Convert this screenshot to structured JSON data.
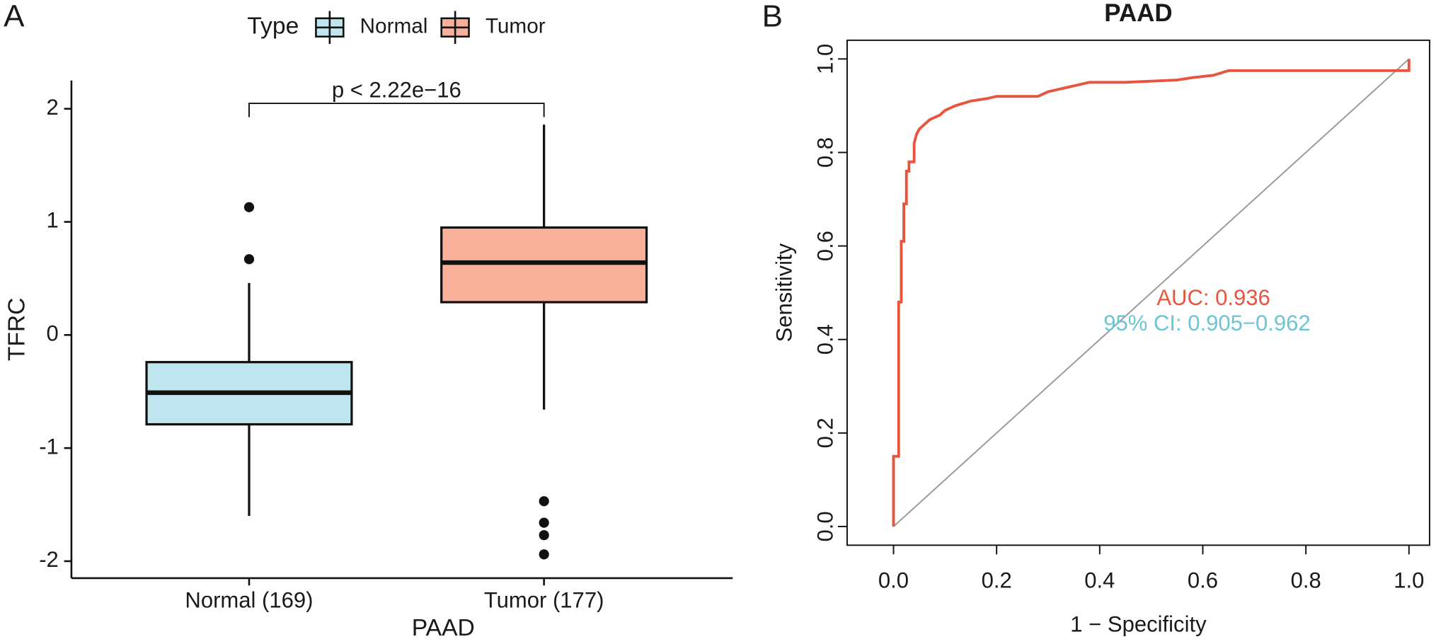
{
  "chart_data": [
    {
      "type": "box",
      "panel_label": "A",
      "legend_title": "Type",
      "x_label": "PAAD",
      "y_label": "TFRC",
      "annotation": "p < 2.22e−16",
      "categories": [
        "Normal (169)",
        "Tumor (177)"
      ],
      "series": [
        {
          "name": "Normal",
          "color": "#bfe6ef",
          "whisker_low": -1.6,
          "q1": -0.79,
          "median": -0.51,
          "q3": -0.24,
          "whisker_high": 0.46,
          "outliers": [
            0.67,
            1.13
          ]
        },
        {
          "name": "Tumor",
          "color": "#f9b09b",
          "whisker_low": -0.66,
          "q1": 0.29,
          "median": 0.64,
          "q3": 0.95,
          "whisker_high": 1.86,
          "outliers": [
            -1.47,
            -1.66,
            -1.77,
            -1.94
          ]
        }
      ],
      "ylim": [
        -2.15,
        2.25
      ],
      "yticks": [
        -2,
        -1,
        0,
        1,
        2
      ]
    },
    {
      "type": "line",
      "panel_label": "B",
      "title": "PAAD",
      "x_label": "1 − Specificity",
      "y_label": "Sensitivity",
      "annotations": [
        {
          "text": "AUC: 0.936",
          "color": "#e8553e"
        },
        {
          "text": "95% CI: 0.905−0.962",
          "color": "#6cc5d3"
        }
      ],
      "x": [
        0,
        0,
        0.01,
        0.01,
        0.015,
        0.015,
        0.02,
        0.02,
        0.025,
        0.025,
        0.03,
        0.03,
        0.04,
        0.04,
        0.045,
        0.05,
        0.06,
        0.07,
        0.08,
        0.09,
        0.1,
        0.12,
        0.15,
        0.18,
        0.2,
        0.28,
        0.3,
        0.34,
        0.38,
        0.45,
        0.55,
        0.58,
        0.62,
        0.65,
        1.0,
        1.0
      ],
      "series": [
        {
          "color": "#e8553e",
          "values": [
            0,
            0.15,
            0.15,
            0.48,
            0.48,
            0.61,
            0.61,
            0.69,
            0.69,
            0.76,
            0.76,
            0.78,
            0.78,
            0.82,
            0.84,
            0.85,
            0.86,
            0.87,
            0.875,
            0.88,
            0.89,
            0.9,
            0.91,
            0.915,
            0.92,
            0.92,
            0.93,
            0.94,
            0.95,
            0.95,
            0.955,
            0.96,
            0.965,
            0.975,
            0.975,
            1.0
          ]
        }
      ],
      "xlim": [
        -0.09,
        1.04
      ],
      "ylim": [
        -0.04,
        1.04
      ],
      "xticks": [
        {
          "value": 0,
          "label": "0.0"
        },
        0.2,
        0.4,
        0.6,
        0.8,
        {
          "value": 1,
          "label": "1.0"
        }
      ],
      "yticks": [
        {
          "value": 0,
          "label": "0.0"
        },
        0.2,
        0.4,
        0.6,
        0.8,
        {
          "value": 1,
          "label": "1.0"
        }
      ]
    }
  ]
}
